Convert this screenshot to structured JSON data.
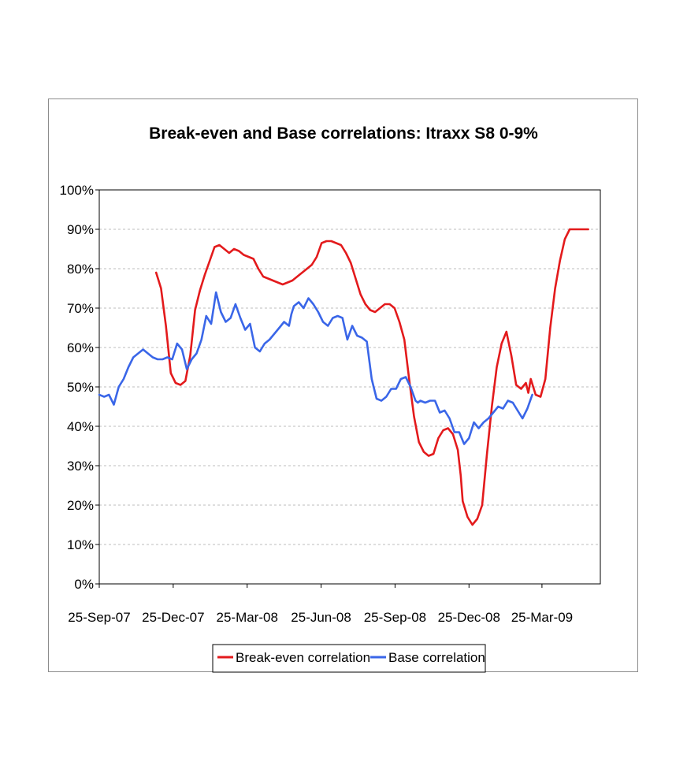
{
  "chart_data": {
    "type": "line",
    "title": "Break-even and Base correlations: Itraxx S8 0-9%",
    "xlabel": "",
    "ylabel": "",
    "ylim": [
      0,
      100
    ],
    "x_range": [
      0,
      103
    ],
    "y_ticks": [
      0,
      10,
      20,
      30,
      40,
      50,
      60,
      70,
      80,
      90,
      100
    ],
    "y_tick_labels": [
      "0%",
      "10%",
      "20%",
      "30%",
      "40%",
      "50%",
      "60%",
      "70%",
      "80%",
      "90%",
      "100%"
    ],
    "x_ticks": [
      0,
      15.2,
      30.4,
      45.6,
      60.8,
      76,
      91
    ],
    "x_tick_labels": [
      "25-Sep-07",
      "25-Dec-07",
      "25-Mar-08",
      "25-Jun-08",
      "25-Sep-08",
      "25-Dec-08",
      "25-Mar-09"
    ],
    "grid": "horizontal dashed",
    "legend_position": "bottom",
    "colors": {
      "break_even": "#e31a1c",
      "base": "#3a66e8",
      "grid": "#bdbdbd",
      "axis": "#000000"
    },
    "series": [
      {
        "name": "Break-even correlation",
        "color": "#e31a1c",
        "points": [
          [
            11.7,
            79
          ],
          [
            12.7,
            75
          ],
          [
            13.7,
            65.5
          ],
          [
            14.7,
            53.5
          ],
          [
            15.7,
            51
          ],
          [
            16.7,
            50.5
          ],
          [
            17.7,
            51.5
          ],
          [
            18.7,
            58
          ],
          [
            19.7,
            69.5
          ],
          [
            20.7,
            74.5
          ],
          [
            21.7,
            78.5
          ],
          [
            22.7,
            82
          ],
          [
            23.7,
            85.5
          ],
          [
            24.7,
            86
          ],
          [
            25.7,
            85
          ],
          [
            26.7,
            84
          ],
          [
            27.7,
            85
          ],
          [
            28.7,
            84.5
          ],
          [
            29.7,
            83.5
          ],
          [
            30.7,
            83
          ],
          [
            31.7,
            82.5
          ],
          [
            32.7,
            80
          ],
          [
            33.7,
            78
          ],
          [
            34.7,
            77.5
          ],
          [
            35.7,
            77
          ],
          [
            36.7,
            76.5
          ],
          [
            37.7,
            76
          ],
          [
            38.7,
            76.5
          ],
          [
            39.7,
            77
          ],
          [
            40.7,
            78
          ],
          [
            41.7,
            79
          ],
          [
            42.7,
            80
          ],
          [
            43.7,
            81
          ],
          [
            44.7,
            83
          ],
          [
            45.7,
            86.5
          ],
          [
            46.7,
            87
          ],
          [
            47.7,
            87
          ],
          [
            48.7,
            86.5
          ],
          [
            49.7,
            86
          ],
          [
            50.7,
            84
          ],
          [
            51.7,
            81.5
          ],
          [
            52.7,
            77.5
          ],
          [
            53.7,
            73.5
          ],
          [
            54.7,
            71
          ],
          [
            55.7,
            69.5
          ],
          [
            56.7,
            69
          ],
          [
            57.7,
            70
          ],
          [
            58.7,
            71
          ],
          [
            59.7,
            71
          ],
          [
            60.7,
            70
          ],
          [
            61.7,
            66.5
          ],
          [
            62.7,
            62
          ],
          [
            63.7,
            52
          ],
          [
            64.7,
            42.5
          ],
          [
            65.7,
            36
          ],
          [
            66.7,
            33.5
          ],
          [
            67.7,
            32.5
          ],
          [
            68.7,
            33
          ],
          [
            69.7,
            37
          ],
          [
            70.7,
            39
          ],
          [
            71.7,
            39.5
          ],
          [
            72.7,
            38
          ],
          [
            73.7,
            34
          ],
          [
            74.3,
            27.5
          ],
          [
            74.7,
            21
          ],
          [
            75.7,
            17
          ],
          [
            76.7,
            15
          ],
          [
            77.7,
            16.5
          ],
          [
            78.7,
            20
          ],
          [
            79.7,
            33
          ],
          [
            80.7,
            45
          ],
          [
            81.7,
            55
          ],
          [
            82.7,
            61
          ],
          [
            83.7,
            64
          ],
          [
            84.7,
            58
          ],
          [
            85.7,
            50.5
          ],
          [
            86.7,
            49.5
          ],
          [
            87.7,
            51
          ],
          [
            88.2,
            48.5
          ],
          [
            88.7,
            52
          ],
          [
            89.7,
            48
          ],
          [
            90.7,
            47.5
          ],
          [
            91.7,
            52
          ],
          [
            92.7,
            65
          ],
          [
            93.7,
            75
          ],
          [
            94.7,
            82
          ],
          [
            95.7,
            87.5
          ],
          [
            96.7,
            90
          ],
          [
            97.7,
            90
          ],
          [
            98.7,
            90
          ],
          [
            99.7,
            90
          ],
          [
            100.5,
            90
          ]
        ]
      },
      {
        "name": "Base correlation",
        "color": "#3a66e8",
        "points": [
          [
            0,
            48
          ],
          [
            1,
            47.5
          ],
          [
            2,
            48
          ],
          [
            3,
            45.5
          ],
          [
            4,
            50
          ],
          [
            5,
            52
          ],
          [
            6,
            55
          ],
          [
            7,
            57.5
          ],
          [
            8,
            58.5
          ],
          [
            9,
            59.5
          ],
          [
            10,
            58.5
          ],
          [
            11,
            57.5
          ],
          [
            12,
            57
          ],
          [
            13,
            57
          ],
          [
            14,
            57.5
          ],
          [
            15,
            57
          ],
          [
            16,
            61
          ],
          [
            17,
            59.5
          ],
          [
            18,
            54.5
          ],
          [
            19,
            57
          ],
          [
            20,
            58.5
          ],
          [
            21,
            62
          ],
          [
            22,
            68
          ],
          [
            23,
            66
          ],
          [
            24,
            74
          ],
          [
            25,
            69
          ],
          [
            26,
            66.5
          ],
          [
            27,
            67.5
          ],
          [
            28,
            71
          ],
          [
            29,
            67.5
          ],
          [
            30,
            64.5
          ],
          [
            31,
            66
          ],
          [
            32,
            60
          ],
          [
            33,
            59
          ],
          [
            34,
            61
          ],
          [
            35,
            62
          ],
          [
            36,
            63.5
          ],
          [
            37,
            65
          ],
          [
            38,
            66.5
          ],
          [
            39,
            65.5
          ],
          [
            39.5,
            68.5
          ],
          [
            40,
            70.5
          ],
          [
            41,
            71.5
          ],
          [
            42,
            70
          ],
          [
            43,
            72.5
          ],
          [
            44,
            71
          ],
          [
            45,
            69
          ],
          [
            46,
            66.5
          ],
          [
            47,
            65.5
          ],
          [
            48,
            67.5
          ],
          [
            49,
            68
          ],
          [
            50,
            67.5
          ],
          [
            51,
            62
          ],
          [
            52,
            65.5
          ],
          [
            53,
            63
          ],
          [
            54,
            62.5
          ],
          [
            55,
            61.5
          ],
          [
            56,
            52
          ],
          [
            57,
            47
          ],
          [
            58,
            46.5
          ],
          [
            59,
            47.5
          ],
          [
            60,
            49.5
          ],
          [
            61,
            49.5
          ],
          [
            62,
            52
          ],
          [
            63,
            52.5
          ],
          [
            64,
            50
          ],
          [
            65,
            46.5
          ],
          [
            65.5,
            46
          ],
          [
            66,
            46.5
          ],
          [
            67,
            46
          ],
          [
            68,
            46.5
          ],
          [
            69,
            46.5
          ],
          [
            70,
            43.5
          ],
          [
            71,
            44
          ],
          [
            72,
            42
          ],
          [
            73,
            38.5
          ],
          [
            74,
            38.5
          ],
          [
            75,
            35.5
          ],
          [
            76,
            37
          ],
          [
            77,
            41
          ],
          [
            78,
            39.5
          ],
          [
            79,
            41
          ],
          [
            80,
            42
          ],
          [
            81,
            43.5
          ],
          [
            82,
            45
          ],
          [
            83,
            44.5
          ],
          [
            84,
            46.5
          ],
          [
            85,
            46
          ],
          [
            86,
            44
          ],
          [
            87,
            42
          ],
          [
            88,
            44.5
          ],
          [
            89,
            48
          ]
        ]
      }
    ]
  }
}
